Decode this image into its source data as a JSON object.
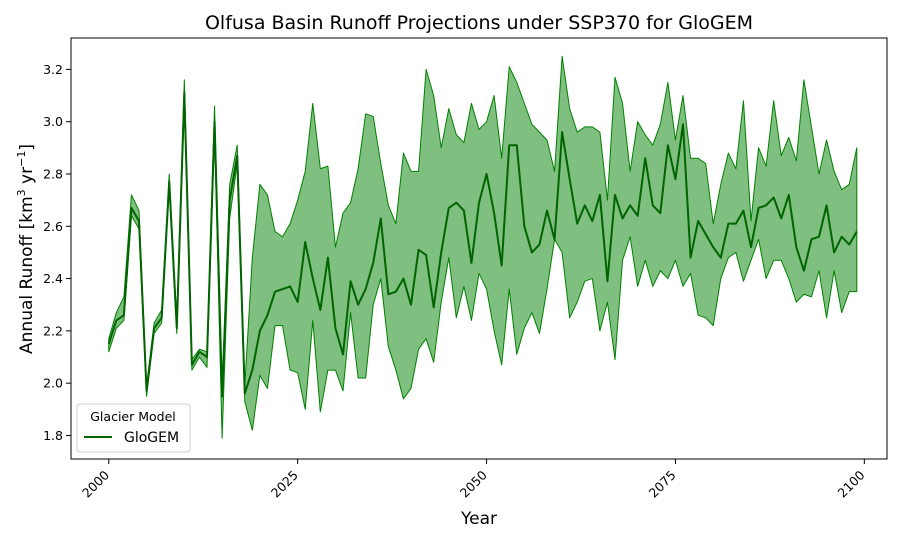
{
  "chart_data": {
    "type": "line",
    "title": "Olfusa Basin Runoff Projections under SSP370 for GloGEM",
    "xlabel": "Year",
    "ylabel_main": "Annual Runoff [km",
    "ylabel_sup1": "3",
    "ylabel_mid": " yr",
    "ylabel_sup2": "−1",
    "ylabel_end": "]",
    "xlim": [
      1995,
      2103
    ],
    "ylim": [
      1.71,
      3.32
    ],
    "xticks": [
      2000,
      2025,
      2050,
      2075,
      2100
    ],
    "xtick_labels": [
      "2000",
      "2025",
      "2050",
      "2075",
      "2100"
    ],
    "yticks": [
      1.8,
      2.0,
      2.2,
      2.4,
      2.6,
      2.8,
      3.0,
      3.2
    ],
    "ytick_labels": [
      "1.8",
      "2.0",
      "2.2",
      "2.4",
      "2.6",
      "2.8",
      "3.0",
      "3.2"
    ],
    "grid": false,
    "legend": {
      "title": "Glacier Model",
      "placement": "lower-left",
      "entries": [
        "GloGEM"
      ]
    },
    "colors": {
      "line": "#006400",
      "band": "#008000",
      "band_opacity": 0.5
    },
    "x": [
      2000,
      2001,
      2002,
      2003,
      2004,
      2005,
      2006,
      2007,
      2008,
      2009,
      2010,
      2011,
      2012,
      2013,
      2014,
      2015,
      2016,
      2017,
      2018,
      2019,
      2020,
      2021,
      2022,
      2023,
      2024,
      2025,
      2026,
      2027,
      2028,
      2029,
      2030,
      2031,
      2032,
      2033,
      2034,
      2035,
      2036,
      2037,
      2038,
      2039,
      2040,
      2041,
      2042,
      2043,
      2044,
      2045,
      2046,
      2047,
      2048,
      2049,
      2050,
      2051,
      2052,
      2053,
      2054,
      2055,
      2056,
      2057,
      2058,
      2059,
      2060,
      2061,
      2062,
      2063,
      2064,
      2065,
      2066,
      2067,
      2068,
      2069,
      2070,
      2071,
      2072,
      2073,
      2074,
      2075,
      2076,
      2077,
      2078,
      2079,
      2080,
      2081,
      2082,
      2083,
      2084,
      2085,
      2086,
      2087,
      2088,
      2089,
      2090,
      2091,
      2092,
      2093,
      2094,
      2095,
      2096,
      2097,
      2098,
      2099
    ],
    "series": [
      {
        "name": "GloGEM",
        "values": [
          2.15,
          2.24,
          2.26,
          2.67,
          2.62,
          1.97,
          2.21,
          2.25,
          2.77,
          2.21,
          3.11,
          2.07,
          2.12,
          2.1,
          3.0,
          1.95,
          2.7,
          2.87,
          1.96,
          2.05,
          2.2,
          2.26,
          2.35,
          2.36,
          2.37,
          2.31,
          2.54,
          2.4,
          2.28,
          2.48,
          2.21,
          2.11,
          2.39,
          2.3,
          2.36,
          2.46,
          2.63,
          2.34,
          2.35,
          2.4,
          2.3,
          2.51,
          2.49,
          2.29,
          2.5,
          2.67,
          2.69,
          2.66,
          2.46,
          2.69,
          2.8,
          2.65,
          2.45,
          2.91,
          2.91,
          2.6,
          2.5,
          2.53,
          2.66,
          2.55,
          2.96,
          2.78,
          2.61,
          2.68,
          2.62,
          2.72,
          2.39,
          2.72,
          2.63,
          2.68,
          2.64,
          2.86,
          2.68,
          2.65,
          2.91,
          2.78,
          2.99,
          2.48,
          2.62,
          2.57,
          2.52,
          2.48,
          2.61,
          2.61,
          2.66,
          2.52,
          2.67,
          2.68,
          2.71,
          2.63,
          2.72,
          2.52,
          2.43,
          2.55,
          2.56,
          2.68,
          2.5,
          2.56,
          2.53,
          2.58
        ],
        "lower": [
          2.12,
          2.21,
          2.24,
          2.64,
          2.59,
          1.95,
          2.19,
          2.23,
          2.75,
          2.19,
          3.08,
          2.05,
          2.1,
          2.06,
          2.96,
          1.79,
          2.63,
          2.84,
          1.93,
          1.82,
          2.03,
          1.98,
          2.22,
          2.22,
          2.05,
          2.04,
          1.9,
          2.24,
          1.89,
          2.05,
          2.05,
          1.97,
          2.27,
          2.02,
          2.02,
          2.3,
          2.4,
          2.14,
          2.05,
          1.94,
          1.98,
          2.13,
          2.17,
          2.08,
          2.31,
          2.48,
          2.25,
          2.37,
          2.24,
          2.42,
          2.36,
          2.2,
          2.07,
          2.36,
          2.11,
          2.21,
          2.27,
          2.19,
          2.36,
          2.55,
          2.5,
          2.25,
          2.31,
          2.39,
          2.4,
          2.2,
          2.31,
          2.09,
          2.47,
          2.56,
          2.37,
          2.47,
          2.37,
          2.43,
          2.4,
          2.47,
          2.37,
          2.42,
          2.26,
          2.25,
          2.22,
          2.4,
          2.48,
          2.5,
          2.39,
          2.47,
          2.55,
          2.4,
          2.47,
          2.47,
          2.4,
          2.31,
          2.34,
          2.33,
          2.43,
          2.25,
          2.43,
          2.27,
          2.35,
          2.35
        ],
        "upper": [
          2.17,
          2.27,
          2.33,
          2.72,
          2.66,
          1.99,
          2.23,
          2.28,
          2.8,
          2.24,
          3.16,
          2.09,
          2.13,
          2.12,
          3.06,
          1.97,
          2.76,
          2.91,
          1.99,
          2.48,
          2.76,
          2.72,
          2.58,
          2.56,
          2.61,
          2.7,
          2.81,
          3.07,
          2.82,
          2.83,
          2.52,
          2.65,
          2.69,
          2.82,
          3.03,
          3.02,
          2.84,
          2.68,
          2.61,
          2.88,
          2.81,
          2.81,
          3.2,
          3.1,
          2.9,
          3.05,
          2.95,
          2.92,
          3.07,
          2.97,
          3.0,
          3.1,
          2.86,
          3.21,
          3.15,
          3.07,
          2.99,
          2.96,
          2.93,
          2.81,
          3.25,
          3.05,
          2.96,
          2.98,
          2.98,
          2.96,
          2.7,
          3.17,
          3.07,
          2.81,
          3.0,
          2.95,
          2.91,
          2.99,
          3.15,
          2.93,
          3.1,
          2.86,
          2.86,
          2.84,
          2.61,
          2.76,
          2.88,
          2.82,
          3.08,
          2.62,
          2.9,
          2.83,
          3.08,
          2.87,
          2.94,
          2.85,
          3.16,
          2.98,
          2.8,
          2.93,
          2.81,
          2.74,
          2.76,
          2.9
        ]
      }
    ]
  }
}
